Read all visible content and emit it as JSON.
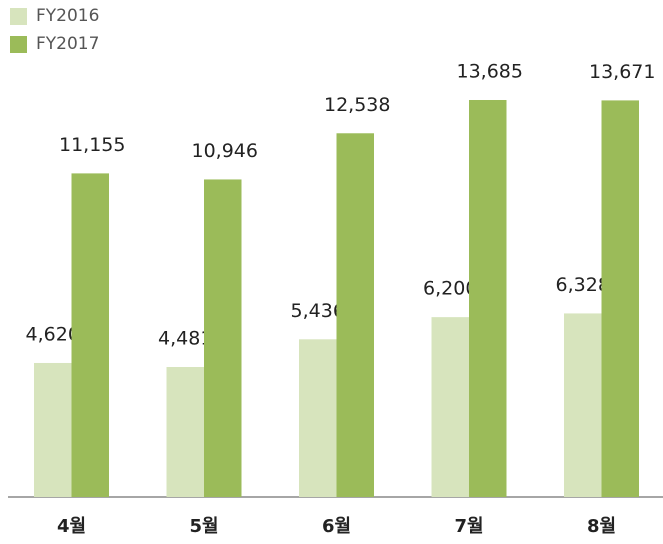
{
  "chart_data": {
    "type": "bar",
    "categories": [
      "4월",
      "5월",
      "6월",
      "7월",
      "8월"
    ],
    "series": [
      {
        "name": "FY2016",
        "color": "#d7e4bd",
        "values": [
          4620,
          4481,
          5436,
          6200,
          6328
        ],
        "value_labels": [
          "4,620",
          "4,481",
          "5,436",
          "6,200",
          "6,328"
        ]
      },
      {
        "name": "FY2017",
        "color": "#9bbb59",
        "values": [
          11155,
          10946,
          12538,
          13685,
          13671
        ],
        "value_labels": [
          "11,155",
          "10,946",
          "12,538",
          "13,685",
          "13,671"
        ]
      }
    ]
  }
}
